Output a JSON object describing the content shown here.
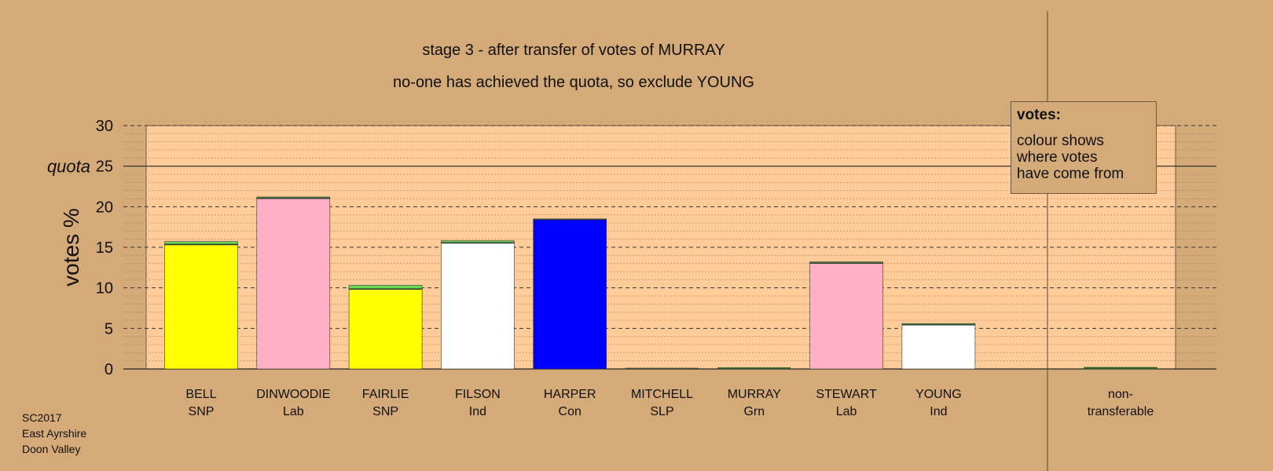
{
  "header": {
    "line1": "stage 3 - after transfer of votes of MURRAY",
    "line2": "no-one has achieved the quota, so exclude YOUNG"
  },
  "footer": {
    "lines": [
      "SC2017",
      "East Ayrshire",
      "Doon Valley"
    ]
  },
  "legend": {
    "title": "votes:",
    "lines": [
      "colour shows",
      "where votes",
      "have come from"
    ]
  },
  "chart_data": {
    "type": "bar",
    "stacked": true,
    "ylabel": "votes %",
    "ylim": [
      0,
      30
    ],
    "yticks": [
      0,
      5,
      10,
      15,
      20,
      25,
      30
    ],
    "quota": {
      "value": 25,
      "label": "quota"
    },
    "categories": [
      {
        "name": "BELL",
        "party": "SNP"
      },
      {
        "name": "DINWOODIE",
        "party": "Lab"
      },
      {
        "name": "FAIRLIE",
        "party": "SNP"
      },
      {
        "name": "FILSON",
        "party": "Ind"
      },
      {
        "name": "HARPER",
        "party": "Con"
      },
      {
        "name": "MITCHELL",
        "party": "SLP"
      },
      {
        "name": "MURRAY",
        "party": "Grn"
      },
      {
        "name": "STEWART",
        "party": "Lab"
      },
      {
        "name": "YOUNG",
        "party": "Ind"
      }
    ],
    "nontransferable": {
      "name": "non-",
      "party": "transferable",
      "value": 0.2
    },
    "series": [
      {
        "color": "#ffff00",
        "values": [
          15.3,
          0,
          9.8,
          0,
          0,
          0,
          0,
          0,
          0
        ]
      },
      {
        "color": "#ffb0c4",
        "values": [
          0,
          21.0,
          0,
          0,
          0,
          0,
          0,
          13.0,
          0
        ]
      },
      {
        "color": "#ffffff",
        "values": [
          0,
          0,
          0,
          15.5,
          0,
          0,
          0,
          0,
          5.4
        ]
      },
      {
        "color": "#0000ff",
        "values": [
          0,
          0,
          0,
          0,
          18.4,
          0,
          0,
          0,
          0
        ]
      },
      {
        "color": "#2e5f2e",
        "values": [
          0.1,
          0.1,
          0.1,
          0.1,
          0.1,
          0.1,
          0,
          0.1,
          0.1
        ]
      },
      {
        "color": "#66dd55",
        "values": [
          0.3,
          0.1,
          0.4,
          0.2,
          0,
          0,
          0,
          0.1,
          0.1
        ]
      }
    ],
    "grid": true,
    "colors": {
      "background": "#d4aa78",
      "plot": "#ffcc99"
    }
  }
}
